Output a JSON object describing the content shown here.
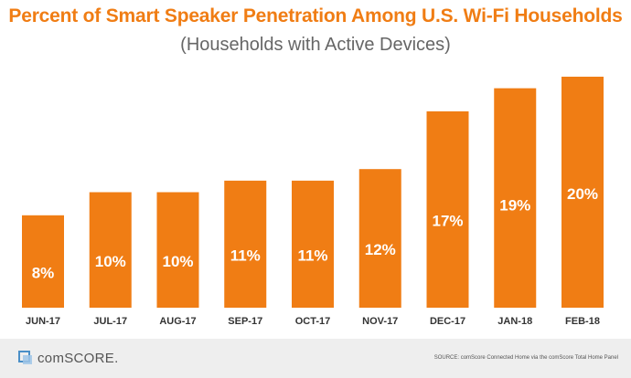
{
  "title": "Percent of Smart Speaker Penetration Among U.S. Wi-Fi Households",
  "subtitle": "(Households with Active Devices)",
  "footer": {
    "logo_text": "comSCORE.",
    "source": "SOURCE: comScore Connected Home via the comScore Total Home Panel"
  },
  "colors": {
    "bar": "#f07d14",
    "title": "#f07d14",
    "label": "#ffffff"
  },
  "chart_data": {
    "type": "bar",
    "title": "Percent of Smart Speaker Penetration Among U.S. Wi-Fi Households",
    "subtitle": "(Households with Active Devices)",
    "categories": [
      "JUN-17",
      "JUL-17",
      "AUG-17",
      "SEP-17",
      "OCT-17",
      "NOV-17",
      "DEC-17",
      "JAN-18",
      "FEB-18"
    ],
    "values": [
      8,
      10,
      10,
      11,
      11,
      12,
      17,
      19,
      20
    ],
    "data_labels": [
      "8%",
      "10%",
      "10%",
      "11%",
      "11%",
      "12%",
      "17%",
      "19%",
      "20%"
    ],
    "xlabel": "",
    "ylabel": "",
    "ylim": [
      0,
      20
    ],
    "grid": false,
    "legend": "none"
  }
}
